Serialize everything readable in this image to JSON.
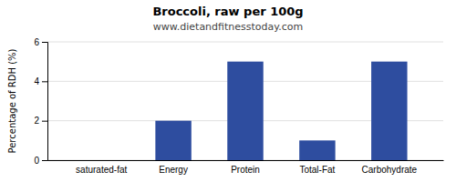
{
  "chart_data": {
    "type": "bar",
    "title": "Broccoli, raw per 100g",
    "subtitle": "www.dietandfitnesstoday.com",
    "categories": [
      "saturated-fat",
      "Energy",
      "Protein",
      "Total-Fat",
      "Carbohydrate"
    ],
    "values": [
      0.0,
      2.0,
      5.0,
      1.0,
      5.0
    ],
    "color": "#2e4d9f",
    "ylabel": "Percentage of RDH (%)",
    "ylim": [
      0,
      6
    ],
    "yticks": [
      0,
      2,
      4,
      6
    ],
    "grid": true
  }
}
